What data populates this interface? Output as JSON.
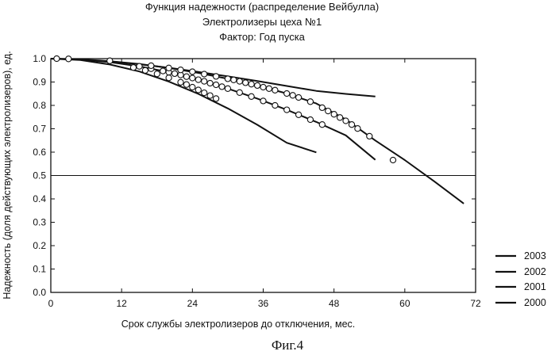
{
  "titles": {
    "line1": "Функция надежности (распределение Вейбулла)",
    "line2": "Электролизеры цеха №1",
    "line3": "Фактор: Год пуска"
  },
  "caption": "Фиг.4",
  "chart_data": {
    "type": "line",
    "title": "Функция надежности (распределение Вейбулла)",
    "subtitle": [
      "Электролизеры цеха №1",
      "Фактор: Год пуска"
    ],
    "xlabel": "Срок службы электролизеров до отключения, мес.",
    "ylabel": "Надежность (доля действующих электролизеров), ед.",
    "xlim": [
      0,
      72
    ],
    "ylim": [
      0,
      1.0
    ],
    "x_ticks": [
      0,
      12,
      24,
      36,
      48,
      60,
      72
    ],
    "y_ticks": [
      0.0,
      0.1,
      0.2,
      0.3,
      0.4,
      0.5,
      0.6,
      0.7,
      0.8,
      0.9,
      1.0
    ],
    "y_tick_labels": [
      "0.0",
      "0.1",
      "0.2",
      "0.3",
      "0.4",
      "0.5",
      "0.6",
      "0.7",
      "0.8",
      "0.9",
      "1.0"
    ],
    "grid": false,
    "reference_line": {
      "y": 0.5
    },
    "legend_position": "right-bottom",
    "series": [
      {
        "name": "2003",
        "line": {
          "x": [
            0,
            5,
            10,
            15,
            20,
            25,
            30,
            35,
            40,
            45,
            50,
            55
          ],
          "y": [
            1.0,
            0.996,
            0.988,
            0.976,
            0.961,
            0.943,
            0.924,
            0.904,
            0.883,
            0.862,
            0.849,
            0.838
          ]
        },
        "points": []
      },
      {
        "name": "2002",
        "line": {
          "x": [
            0,
            5,
            10,
            15,
            20,
            25,
            30,
            35,
            40,
            45
          ],
          "y": [
            1.0,
            0.994,
            0.975,
            0.945,
            0.902,
            0.849,
            0.787,
            0.717,
            0.64,
            0.599
          ]
        },
        "points": {
          "x": [
            14,
            16,
            18,
            20,
            22,
            23,
            24,
            25,
            26,
            27,
            28
          ],
          "y": [
            0.962,
            0.95,
            0.935,
            0.918,
            0.899,
            0.889,
            0.878,
            0.866,
            0.854,
            0.842,
            0.829
          ]
        }
      },
      {
        "name": "2001",
        "line": {
          "x": [
            0,
            5,
            10,
            15,
            20,
            25,
            30,
            35,
            40,
            45,
            50,
            55
          ],
          "y": [
            1.0,
            0.996,
            0.985,
            0.967,
            0.942,
            0.91,
            0.872,
            0.829,
            0.781,
            0.729,
            0.672,
            0.567
          ]
        },
        "points": {
          "x": [
            15,
            17,
            19,
            20,
            21,
            22,
            23,
            24,
            25,
            26,
            27,
            28,
            29,
            30,
            32,
            34,
            36,
            38,
            40,
            42,
            44,
            46
          ],
          "y": [
            0.967,
            0.957,
            0.947,
            0.942,
            0.936,
            0.93,
            0.923,
            0.917,
            0.91,
            0.903,
            0.895,
            0.888,
            0.88,
            0.872,
            0.855,
            0.838,
            0.819,
            0.8,
            0.781,
            0.76,
            0.739,
            0.718
          ]
        }
      },
      {
        "name": "2000",
        "line": {
          "x": [
            0,
            5,
            10,
            15,
            20,
            25,
            30,
            35,
            40,
            45,
            50,
            55,
            60,
            65,
            70
          ],
          "y": [
            1.0,
            0.997,
            0.989,
            0.977,
            0.96,
            0.939,
            0.914,
            0.885,
            0.851,
            0.808,
            0.74,
            0.65,
            0.566,
            0.475,
            0.38
          ]
        },
        "points": {
          "x": [
            1,
            3,
            10,
            17,
            20,
            22,
            24,
            26,
            28,
            30,
            31,
            32,
            33,
            34,
            35,
            36,
            37,
            38,
            40,
            41,
            42,
            44,
            46,
            47,
            48,
            49,
            50,
            51,
            52,
            54,
            58
          ],
          "y": [
            1.0,
            0.999,
            0.991,
            0.97,
            0.96,
            0.952,
            0.944,
            0.934,
            0.924,
            0.914,
            0.909,
            0.903,
            0.897,
            0.891,
            0.885,
            0.878,
            0.872,
            0.865,
            0.851,
            0.843,
            0.834,
            0.816,
            0.79,
            0.776,
            0.762,
            0.748,
            0.734,
            0.718,
            0.701,
            0.668,
            0.566
          ]
        }
      }
    ]
  }
}
